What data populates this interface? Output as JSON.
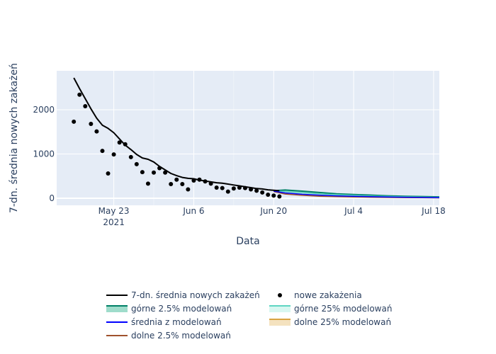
{
  "chart_data": {
    "type": "line",
    "xlabel": "Data",
    "ylabel": "7-dn. średnia nowych zakażeń",
    "x_range": [
      "2021-05-13",
      "2021-07-19"
    ],
    "y_range": [
      -160,
      2880
    ],
    "x_ticks": [
      {
        "date": "2021-05-23",
        "label": "May 23",
        "sublabel": "2021"
      },
      {
        "date": "2021-06-06",
        "label": "Jun 6",
        "sublabel": ""
      },
      {
        "date": "2021-06-20",
        "label": "Jun 20",
        "sublabel": ""
      },
      {
        "date": "2021-07-04",
        "label": "Jul 4",
        "sublabel": ""
      },
      {
        "date": "2021-07-18",
        "label": "Jul 18",
        "sublabel": ""
      }
    ],
    "y_ticks": [
      0,
      1000,
      2000
    ],
    "grid": true,
    "legend_position": "bottom",
    "colors": {
      "plot_bg": "#e5ecf6",
      "grid": "#ffffff",
      "avg_line": "#000000",
      "points": "#000000",
      "upper_2_5": "#008066",
      "upper_2_5_fill": "#9fdccb",
      "upper_25": "#5ed6c2",
      "upper_25_fill": "#d8f7f1",
      "mean_model": "#0000ff",
      "lower_2_5": "#a0522d",
      "lower_25": "#d9a441",
      "lower_25_fill": "#f4e2bf"
    },
    "legend": [
      {
        "key": "avg",
        "label": "7-dn. średnia nowych zakażeń",
        "kind": "line",
        "color": "#000000"
      },
      {
        "key": "new",
        "label": "nowe zakażenia",
        "kind": "marker",
        "color": "#000000"
      },
      {
        "key": "up25pct",
        "label": "górne 2.5% modelowań",
        "kind": "band",
        "color": "#008066",
        "fill": "#9fdccb"
      },
      {
        "key": "up25",
        "label": "górne 25% modelowań",
        "kind": "band",
        "color": "#5ed6c2",
        "fill": "#d8f7f1"
      },
      {
        "key": "mean",
        "label": "średnia z modelowań",
        "kind": "line",
        "color": "#0000ff"
      },
      {
        "key": "low25",
        "label": "dolne 25% modelowań",
        "kind": "band",
        "color": "#d9a441",
        "fill": "#f4e2bf"
      },
      {
        "key": "low25pct",
        "label": "dolne 2.5% modelowań",
        "kind": "line",
        "color": "#a0522d"
      }
    ],
    "series": [
      {
        "name": "7-dn. średnia nowych zakażeń",
        "x": [
          "2021-05-16",
          "2021-05-17",
          "2021-05-18",
          "2021-05-19",
          "2021-05-20",
          "2021-05-21",
          "2021-05-22",
          "2021-05-23",
          "2021-05-24",
          "2021-05-25",
          "2021-05-26",
          "2021-05-27",
          "2021-05-28",
          "2021-05-29",
          "2021-05-30",
          "2021-05-31",
          "2021-06-01",
          "2021-06-02",
          "2021-06-03",
          "2021-06-04",
          "2021-06-05",
          "2021-06-06",
          "2021-06-07",
          "2021-06-08",
          "2021-06-09",
          "2021-06-10",
          "2021-06-11",
          "2021-06-12",
          "2021-06-13",
          "2021-06-14",
          "2021-06-15",
          "2021-06-16",
          "2021-06-17",
          "2021-06-18",
          "2021-06-19",
          "2021-06-20",
          "2021-06-21"
        ],
        "y": [
          2720,
          2480,
          2250,
          2020,
          1810,
          1650,
          1580,
          1480,
          1340,
          1200,
          1100,
          990,
          910,
          880,
          820,
          720,
          640,
          560,
          510,
          470,
          450,
          440,
          410,
          390,
          370,
          350,
          340,
          320,
          300,
          280,
          260,
          240,
          220,
          210,
          190,
          180,
          170
        ]
      },
      {
        "name": "nowe zakażenia",
        "x": [
          "2021-05-16",
          "2021-05-17",
          "2021-05-18",
          "2021-05-19",
          "2021-05-20",
          "2021-05-21",
          "2021-05-22",
          "2021-05-23",
          "2021-05-24",
          "2021-05-25",
          "2021-05-26",
          "2021-05-27",
          "2021-05-28",
          "2021-05-29",
          "2021-05-30",
          "2021-05-31",
          "2021-06-01",
          "2021-06-02",
          "2021-06-03",
          "2021-06-04",
          "2021-06-05",
          "2021-06-06",
          "2021-06-07",
          "2021-06-08",
          "2021-06-09",
          "2021-06-10",
          "2021-06-11",
          "2021-06-12",
          "2021-06-13",
          "2021-06-14",
          "2021-06-15",
          "2021-06-16",
          "2021-06-17",
          "2021-06-18",
          "2021-06-19",
          "2021-06-20",
          "2021-06-21"
        ],
        "y": [
          1730,
          2340,
          2080,
          1680,
          1510,
          1070,
          560,
          990,
          1260,
          1220,
          930,
          770,
          590,
          330,
          580,
          680,
          580,
          320,
          420,
          320,
          200,
          400,
          420,
          380,
          330,
          240,
          230,
          150,
          220,
          240,
          230,
          200,
          170,
          130,
          80,
          60,
          40
        ]
      },
      {
        "name": "górne 2.5% modelowań",
        "x": [
          "2021-06-20",
          "2021-06-22",
          "2021-06-25",
          "2021-06-28",
          "2021-07-01",
          "2021-07-04",
          "2021-07-07",
          "2021-07-10",
          "2021-07-13",
          "2021-07-16",
          "2021-07-19"
        ],
        "y": [
          170,
          185,
          160,
          130,
          100,
          85,
          70,
          55,
          45,
          38,
          30
        ]
      },
      {
        "name": "górne 25% modelowań",
        "x": [
          "2021-06-20",
          "2021-06-22",
          "2021-06-25",
          "2021-06-28",
          "2021-07-01",
          "2021-07-04",
          "2021-07-07",
          "2021-07-10",
          "2021-07-13",
          "2021-07-16",
          "2021-07-19"
        ],
        "y": [
          165,
          150,
          125,
          100,
          80,
          65,
          50,
          40,
          32,
          26,
          20
        ]
      },
      {
        "name": "średnia z modelowań",
        "x": [
          "2021-06-20",
          "2021-06-22",
          "2021-06-25",
          "2021-06-28",
          "2021-07-01",
          "2021-07-04",
          "2021-07-07",
          "2021-07-10",
          "2021-07-13",
          "2021-07-16",
          "2021-07-19"
        ],
        "y": [
          160,
          120,
          90,
          70,
          55,
          45,
          35,
          28,
          22,
          18,
          15
        ]
      },
      {
        "name": "dolne 25% modelowań",
        "x": [
          "2021-06-20",
          "2021-06-22",
          "2021-06-25",
          "2021-06-28",
          "2021-07-01",
          "2021-07-04",
          "2021-07-07",
          "2021-07-10",
          "2021-07-13",
          "2021-07-16",
          "2021-07-19"
        ],
        "y": [
          155,
          105,
          75,
          55,
          42,
          34,
          27,
          21,
          17,
          14,
          11
        ]
      },
      {
        "name": "dolne 2.5% modelowań",
        "x": [
          "2021-06-20",
          "2021-06-22",
          "2021-06-25",
          "2021-06-28",
          "2021-07-01",
          "2021-07-04",
          "2021-07-07",
          "2021-07-10",
          "2021-07-13",
          "2021-07-16",
          "2021-07-19"
        ],
        "y": [
          150,
          95,
          65,
          45,
          35,
          28,
          22,
          18,
          14,
          11,
          8
        ]
      }
    ]
  }
}
